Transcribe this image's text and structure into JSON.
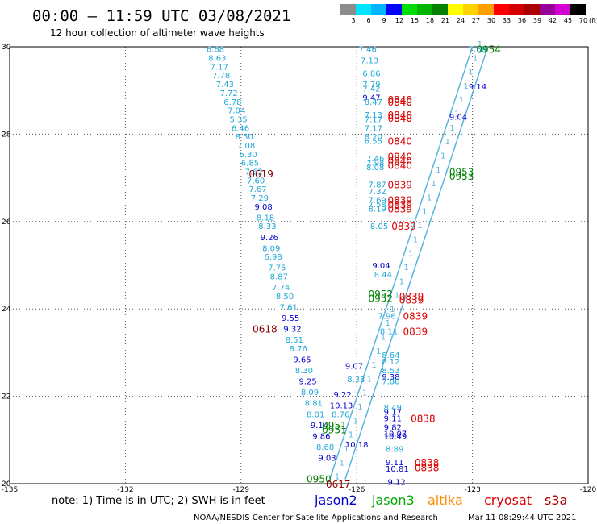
{
  "title": "00:00 – 11:59 UTC 03/08/2021",
  "subtitle": "12 hour collection of altimeter wave heights",
  "note": "note:  1) Time is in UTC;  2) SWH is in feet",
  "footer_left": "NOAA/NESDIS Center for Satellite Applications and Research",
  "footer_right": "Mar 11 08:29:44 UTC 2021",
  "colorbar": {
    "unit": "(ft)",
    "ticks": [
      "3",
      "6",
      "9",
      "12",
      "15",
      "18",
      "21",
      "24",
      "27",
      "30",
      "33",
      "36",
      "39",
      "42",
      "45",
      "70"
    ],
    "colors": [
      "#8c8c8c",
      "#00e5ff",
      "#00b7ff",
      "#0000ff",
      "#00dd00",
      "#00b400",
      "#008000",
      "#ffff00",
      "#ffd200",
      "#ffa000",
      "#ff0000",
      "#d20000",
      "#aa0000",
      "#960096",
      "#d200d2",
      "#000000"
    ]
  },
  "legend": [
    {
      "name": "jason2",
      "color": "#0000cc"
    },
    {
      "name": "jason3",
      "color": "#00aa00"
    },
    {
      "name": "altika",
      "color": "#ff8c00"
    },
    {
      "name": "cryosat",
      "color": "#dd0000"
    },
    {
      "name": "s3a",
      "color": "#aa0000"
    }
  ],
  "chart_data": {
    "type": "scatter",
    "xlim": [
      -135,
      -120
    ],
    "ylim": [
      20,
      30
    ],
    "x_ticks": [
      "-135",
      "-132",
      "-129",
      "-126",
      "-123",
      "-120"
    ],
    "y_ticks": [
      "20",
      "22",
      "24",
      "26",
      "28",
      "30"
    ],
    "grid": true,
    "swath_ticks": [
      "1",
      "1",
      "1",
      "1",
      "1",
      "1",
      "1",
      "1",
      "1",
      "1",
      "1",
      "1",
      "1",
      "1",
      "1",
      "1",
      "1",
      "1",
      "1",
      "1",
      "1",
      "1",
      "1",
      "1",
      "1",
      "1",
      "1",
      "1",
      "1",
      "1",
      "1",
      "1"
    ],
    "swath_lines": [
      {
        "from": [
          -126.7,
          20.1
        ],
        "to": [
          -123.0,
          30.0
        ],
        "color": "#5ab4e0"
      },
      {
        "from": [
          -126.3,
          20.1
        ],
        "to": [
          -122.6,
          30.0
        ],
        "color": "#5ab4e0"
      }
    ],
    "passes": [
      {
        "label": "0954",
        "x": -122.9,
        "y": 29.95,
        "color": "#008000"
      },
      {
        "label": "0840",
        "x": -125.2,
        "y": 28.8,
        "color": "#dd0000"
      },
      {
        "label": "0840",
        "x": -125.2,
        "y": 28.75,
        "color": "#dd0000"
      },
      {
        "label": "0840",
        "x": -125.2,
        "y": 28.45,
        "color": "#dd0000"
      },
      {
        "label": "0840",
        "x": -125.2,
        "y": 28.38,
        "color": "#dd0000"
      },
      {
        "label": "0840",
        "x": -125.2,
        "y": 27.85,
        "color": "#dd0000"
      },
      {
        "label": "0840",
        "x": -125.2,
        "y": 27.5,
        "color": "#dd0000"
      },
      {
        "label": "0840",
        "x": -125.2,
        "y": 27.4,
        "color": "#dd0000"
      },
      {
        "label": "0840",
        "x": -125.2,
        "y": 27.3,
        "color": "#dd0000"
      },
      {
        "label": "0619",
        "x": -128.8,
        "y": 27.1,
        "color": "#880000"
      },
      {
        "label": "0953",
        "x": -123.6,
        "y": 27.15,
        "color": "#008000"
      },
      {
        "label": "0953",
        "x": -123.6,
        "y": 27.05,
        "color": "#008000"
      },
      {
        "label": "0839",
        "x": -125.2,
        "y": 26.85,
        "color": "#dd0000"
      },
      {
        "label": "0839",
        "x": -125.2,
        "y": 26.5,
        "color": "#dd0000"
      },
      {
        "label": "0839",
        "x": -125.2,
        "y": 26.4,
        "color": "#dd0000"
      },
      {
        "label": "0839",
        "x": -125.2,
        "y": 26.3,
        "color": "#dd0000"
      },
      {
        "label": "0839",
        "x": -125.1,
        "y": 25.9,
        "color": "#dd0000"
      },
      {
        "label": "0952",
        "x": -125.7,
        "y": 24.35,
        "color": "#008000"
      },
      {
        "label": "0952",
        "x": -125.7,
        "y": 24.25,
        "color": "#008000"
      },
      {
        "label": "0839",
        "x": -124.9,
        "y": 24.3,
        "color": "#dd0000"
      },
      {
        "label": "0839",
        "x": -124.9,
        "y": 24.22,
        "color": "#dd0000"
      },
      {
        "label": "0839",
        "x": -124.8,
        "y": 23.85,
        "color": "#dd0000"
      },
      {
        "label": "0839",
        "x": -124.8,
        "y": 23.5,
        "color": "#dd0000"
      },
      {
        "label": "0618",
        "x": -128.7,
        "y": 23.55,
        "color": "#880000"
      },
      {
        "label": "0838",
        "x": -124.6,
        "y": 21.5,
        "color": "#dd0000"
      },
      {
        "label": "0951",
        "x": -126.9,
        "y": 21.35,
        "color": "#008000"
      },
      {
        "label": "0951",
        "x": -126.9,
        "y": 21.25,
        "color": "#008000"
      },
      {
        "label": "0838",
        "x": -124.5,
        "y": 20.5,
        "color": "#dd0000"
      },
      {
        "label": "0838",
        "x": -124.5,
        "y": 20.38,
        "color": "#dd0000"
      },
      {
        "label": "0950",
        "x": -127.3,
        "y": 20.12,
        "color": "#008000"
      },
      {
        "label": "0617",
        "x": -126.8,
        "y": 20.0,
        "color": "#880000"
      }
    ],
    "points": [
      {
        "x": -129.9,
        "y": 29.95,
        "v": "6.68",
        "c": "#1fa8d8"
      },
      {
        "x": -129.85,
        "y": 29.75,
        "v": "8.63",
        "c": "#1fa8d8"
      },
      {
        "x": -129.8,
        "y": 29.55,
        "v": "7.17",
        "c": "#1fa8d8"
      },
      {
        "x": -129.75,
        "y": 29.35,
        "v": "7.78",
        "c": "#1fa8d8"
      },
      {
        "x": -129.65,
        "y": 29.15,
        "v": "7.43",
        "c": "#1fa8d8"
      },
      {
        "x": -129.55,
        "y": 28.95,
        "v": "7.72",
        "c": "#1fa8d8"
      },
      {
        "x": -129.45,
        "y": 28.75,
        "v": "6.78",
        "c": "#1fa8d8"
      },
      {
        "x": -129.35,
        "y": 28.55,
        "v": "7.04",
        "c": "#1fa8d8"
      },
      {
        "x": -129.3,
        "y": 28.35,
        "v": "5.35",
        "c": "#1fa8d8"
      },
      {
        "x": -129.25,
        "y": 28.15,
        "v": "6.46",
        "c": "#1fa8d8"
      },
      {
        "x": -129.15,
        "y": 27.95,
        "v": "8.50",
        "c": "#1fa8d8"
      },
      {
        "x": -129.1,
        "y": 27.75,
        "v": "7.08",
        "c": "#1fa8d8"
      },
      {
        "x": -129.05,
        "y": 27.55,
        "v": "6.30",
        "c": "#1fa8d8"
      },
      {
        "x": -129.0,
        "y": 27.35,
        "v": "6.85",
        "c": "#1fa8d8"
      },
      {
        "x": -128.9,
        "y": 27.15,
        "v": "7.62",
        "c": "#1fa8d8"
      },
      {
        "x": -128.85,
        "y": 26.95,
        "v": "7.60",
        "c": "#1fa8d8"
      },
      {
        "x": -128.8,
        "y": 26.75,
        "v": "7.67",
        "c": "#1fa8d8"
      },
      {
        "x": -128.75,
        "y": 26.55,
        "v": "7.29",
        "c": "#1fa8d8"
      },
      {
        "x": -128.65,
        "y": 26.35,
        "v": "9.08",
        "c": "#0000cc"
      },
      {
        "x": -128.6,
        "y": 26.1,
        "v": "8.18",
        "c": "#1fa8d8"
      },
      {
        "x": -128.55,
        "y": 25.9,
        "v": "8.33",
        "c": "#1fa8d8"
      },
      {
        "x": -128.5,
        "y": 25.65,
        "v": "9.26",
        "c": "#0000cc"
      },
      {
        "x": -128.45,
        "y": 25.4,
        "v": "8.09",
        "c": "#1fa8d8"
      },
      {
        "x": -128.4,
        "y": 25.2,
        "v": "6.98",
        "c": "#1fa8d8"
      },
      {
        "x": -128.3,
        "y": 24.95,
        "v": "7.75",
        "c": "#1fa8d8"
      },
      {
        "x": -128.25,
        "y": 24.75,
        "v": "8.87",
        "c": "#1fa8d8"
      },
      {
        "x": -128.2,
        "y": 24.5,
        "v": "7.74",
        "c": "#1fa8d8"
      },
      {
        "x": -128.1,
        "y": 24.3,
        "v": "8.50",
        "c": "#1fa8d8"
      },
      {
        "x": -128.0,
        "y": 24.05,
        "v": "7.61",
        "c": "#1fa8d8"
      },
      {
        "x": -127.95,
        "y": 23.8,
        "v": "9.55",
        "c": "#0000cc"
      },
      {
        "x": -127.9,
        "y": 23.55,
        "v": "9.32",
        "c": "#0000cc"
      },
      {
        "x": -127.85,
        "y": 23.3,
        "v": "8.51",
        "c": "#1fa8d8"
      },
      {
        "x": -127.75,
        "y": 23.1,
        "v": "8.76",
        "c": "#1fa8d8"
      },
      {
        "x": -127.65,
        "y": 22.85,
        "v": "9.65",
        "c": "#0000cc"
      },
      {
        "x": -127.6,
        "y": 22.6,
        "v": "8.30",
        "c": "#1fa8d8"
      },
      {
        "x": -127.5,
        "y": 22.35,
        "v": "9.25",
        "c": "#0000cc"
      },
      {
        "x": -127.45,
        "y": 22.1,
        "v": "8.09",
        "c": "#1fa8d8"
      },
      {
        "x": -127.35,
        "y": 21.85,
        "v": "8.81",
        "c": "#1fa8d8"
      },
      {
        "x": -127.3,
        "y": 21.6,
        "v": "8.01",
        "c": "#1fa8d8"
      },
      {
        "x": -127.2,
        "y": 21.35,
        "v": "9.14",
        "c": "#0000cc"
      },
      {
        "x": -127.15,
        "y": 21.1,
        "v": "9.86",
        "c": "#0000cc"
      },
      {
        "x": -127.05,
        "y": 20.85,
        "v": "8.68",
        "c": "#1fa8d8"
      },
      {
        "x": -127.0,
        "y": 20.6,
        "v": "9.03",
        "c": "#0000cc"
      },
      {
        "x": -126.6,
        "y": 22.05,
        "v": "9.22",
        "c": "#0000cc"
      },
      {
        "x": -126.7,
        "y": 21.8,
        "v": "10.13",
        "c": "#0000cc"
      },
      {
        "x": -126.65,
        "y": 21.6,
        "v": "8.76",
        "c": "#1fa8d8"
      },
      {
        "x": -126.3,
        "y": 22.7,
        "v": "9.07",
        "c": "#0000cc"
      },
      {
        "x": -126.25,
        "y": 22.4,
        "v": "8.33",
        "c": "#1fa8d8"
      },
      {
        "x": -126.3,
        "y": 20.9,
        "v": "10.18",
        "c": "#0000cc"
      },
      {
        "x": -125.95,
        "y": 29.95,
        "v": "7.46",
        "c": "#1fa8d8"
      },
      {
        "x": -125.9,
        "y": 29.7,
        "v": "7.13",
        "c": "#1fa8d8"
      },
      {
        "x": -125.85,
        "y": 29.4,
        "v": "6.86",
        "c": "#1fa8d8"
      },
      {
        "x": -125.85,
        "y": 29.15,
        "v": "7.79",
        "c": "#1fa8d8"
      },
      {
        "x": -125.85,
        "y": 29.05,
        "v": "7.42",
        "c": "#1fa8d8"
      },
      {
        "x": -125.85,
        "y": 28.85,
        "v": "9.47",
        "c": "#0000cc"
      },
      {
        "x": -125.8,
        "y": 28.75,
        "v": "8.47",
        "c": "#1fa8d8"
      },
      {
        "x": -125.8,
        "y": 28.45,
        "v": "7.13",
        "c": "#1fa8d8"
      },
      {
        "x": -125.8,
        "y": 28.35,
        "v": "7.17",
        "c": "#1fa8d8"
      },
      {
        "x": -125.8,
        "y": 28.15,
        "v": "7.17",
        "c": "#1fa8d8"
      },
      {
        "x": -125.8,
        "y": 27.95,
        "v": "8.20",
        "c": "#1fa8d8"
      },
      {
        "x": -125.8,
        "y": 27.85,
        "v": "6.55",
        "c": "#1fa8d8"
      },
      {
        "x": -125.75,
        "y": 27.45,
        "v": "7.46",
        "c": "#1fa8d8"
      },
      {
        "x": -125.75,
        "y": 27.35,
        "v": "7.98",
        "c": "#1fa8d8"
      },
      {
        "x": -125.75,
        "y": 27.25,
        "v": "8.08",
        "c": "#1fa8d8"
      },
      {
        "x": -125.7,
        "y": 26.85,
        "v": "7.87",
        "c": "#1fa8d8"
      },
      {
        "x": -125.7,
        "y": 26.7,
        "v": "7.32",
        "c": "#1fa8d8"
      },
      {
        "x": -125.7,
        "y": 26.5,
        "v": "7.69",
        "c": "#1fa8d8"
      },
      {
        "x": -125.7,
        "y": 26.4,
        "v": "7.58",
        "c": "#1fa8d8"
      },
      {
        "x": -125.7,
        "y": 26.3,
        "v": "8.19",
        "c": "#1fa8d8"
      },
      {
        "x": -125.65,
        "y": 25.9,
        "v": "8.05",
        "c": "#1fa8d8"
      },
      {
        "x": -125.6,
        "y": 25.0,
        "v": "9.04",
        "c": "#0000cc"
      },
      {
        "x": -125.55,
        "y": 24.8,
        "v": "8.44",
        "c": "#1fa8d8"
      },
      {
        "x": -125.45,
        "y": 23.85,
        "v": "7.96",
        "c": "#1fa8d8"
      },
      {
        "x": -125.4,
        "y": 23.5,
        "v": "8.11",
        "c": "#1fa8d8"
      },
      {
        "x": -125.35,
        "y": 22.95,
        "v": "8.64",
        "c": "#1fa8d8"
      },
      {
        "x": -125.35,
        "y": 22.8,
        "v": "8.12",
        "c": "#1fa8d8"
      },
      {
        "x": -125.35,
        "y": 22.6,
        "v": "8.53",
        "c": "#1fa8d8"
      },
      {
        "x": -125.35,
        "y": 22.45,
        "v": "9.38",
        "c": "#0000cc"
      },
      {
        "x": -125.35,
        "y": 22.35,
        "v": "7.86",
        "c": "#1fa8d8"
      },
      {
        "x": -125.3,
        "y": 21.75,
        "v": "8.49",
        "c": "#1fa8d8"
      },
      {
        "x": -125.3,
        "y": 21.65,
        "v": "9.17",
        "c": "#0000cc"
      },
      {
        "x": -125.3,
        "y": 21.5,
        "v": "9.11",
        "c": "#0000cc"
      },
      {
        "x": -125.3,
        "y": 21.3,
        "v": "9.82",
        "c": "#0000cc"
      },
      {
        "x": -125.3,
        "y": 21.15,
        "v": "10.07",
        "c": "#0000cc"
      },
      {
        "x": -125.3,
        "y": 21.1,
        "v": "10.49",
        "c": "#0000cc"
      },
      {
        "x": -125.25,
        "y": 20.8,
        "v": "8.89",
        "c": "#1fa8d8"
      },
      {
        "x": -125.25,
        "y": 20.5,
        "v": "9.11",
        "c": "#0000cc"
      },
      {
        "x": -125.25,
        "y": 20.35,
        "v": "10.81",
        "c": "#0000cc"
      },
      {
        "x": -125.2,
        "y": 20.05,
        "v": "9.12",
        "c": "#0000cc"
      },
      {
        "x": -123.1,
        "y": 29.95,
        "v": "7.68",
        "c": "#1fa8d8"
      },
      {
        "x": -123.1,
        "y": 29.1,
        "v": "9.14",
        "c": "#0000cc"
      },
      {
        "x": -123.6,
        "y": 28.4,
        "v": "9.04",
        "c": "#0000cc"
      }
    ]
  }
}
